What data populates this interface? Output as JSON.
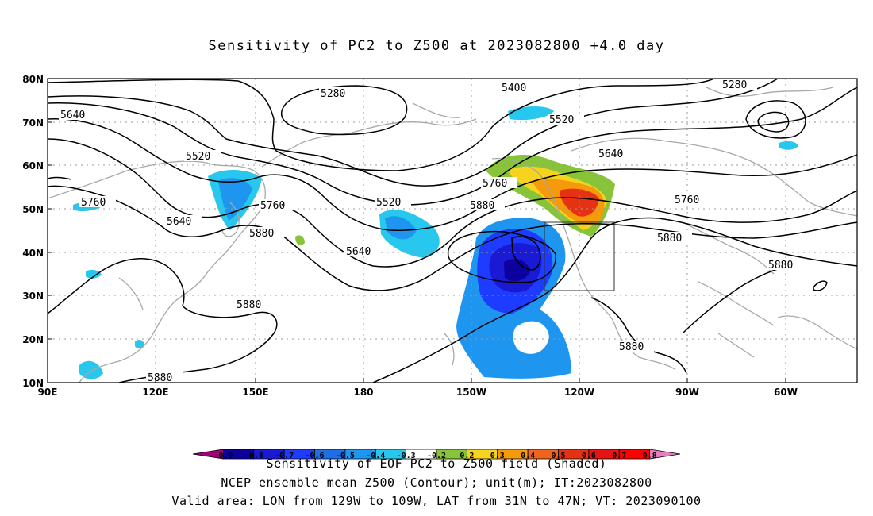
{
  "title": "Sensitivity of PC2 to Z500 at 2023082800 +4.0 day",
  "lat_ticks": [
    "80N",
    "70N",
    "60N",
    "50N",
    "40N",
    "30N",
    "20N",
    "10N"
  ],
  "lon_ticks": [
    "90E",
    "120E",
    "150E",
    "180",
    "150W",
    "120W",
    "90W",
    "60W"
  ],
  "contour_labels": [
    {
      "text": "5280",
      "id": "a"
    },
    {
      "text": "5400",
      "id": "b"
    },
    {
      "text": "5280",
      "id": "c"
    },
    {
      "text": "5640",
      "id": "d"
    },
    {
      "text": "5520",
      "id": "e"
    },
    {
      "text": "5520",
      "id": "f"
    },
    {
      "text": "5640",
      "id": "g"
    },
    {
      "text": "5760",
      "id": "h"
    },
    {
      "text": "5760",
      "id": "i"
    },
    {
      "text": "5520",
      "id": "j"
    },
    {
      "text": "5880",
      "id": "k"
    },
    {
      "text": "5640",
      "id": "l"
    },
    {
      "text": "5760",
      "id": "m"
    },
    {
      "text": "5640",
      "id": "n"
    },
    {
      "text": "5880",
      "id": "o"
    },
    {
      "text": "5760",
      "id": "p"
    },
    {
      "text": "5880",
      "id": "q"
    },
    {
      "text": "5880",
      "id": "r"
    },
    {
      "text": "5880",
      "id": "s"
    },
    {
      "text": "5880",
      "id": "t"
    },
    {
      "text": "5880",
      "id": "u"
    }
  ],
  "colorbar": {
    "labels": [
      "-0.9",
      "-0.8",
      "-0.7",
      "-0.6",
      "-0.5",
      "-0.4",
      "-0.3",
      "-0.2",
      "0.2",
      "0.3",
      "0.4",
      "0.5",
      "0.6",
      "0.7",
      "0.8",
      "0.9"
    ],
    "colors": [
      "#a0007a",
      "#0c009e",
      "#1a1ad4",
      "#1e3cff",
      "#1e6ee6",
      "#1e96f0",
      "#28c8ee",
      "#ffffff",
      "#88c43a",
      "#f5d31e",
      "#f59a0a",
      "#f0641e",
      "#e63214",
      "#e61414",
      "#ff0000",
      "#e87ec0"
    ]
  },
  "captions": {
    "line1": "Sensitivity of EOF PC2 to Z500 field (Shaded)",
    "line2": "NCEP ensemble mean Z500 (Contour); unit(m); IT:2023082800",
    "line3": "Valid area: LON from 129W to 109W, LAT from 31N to 47N; VT: 2023090100"
  }
}
